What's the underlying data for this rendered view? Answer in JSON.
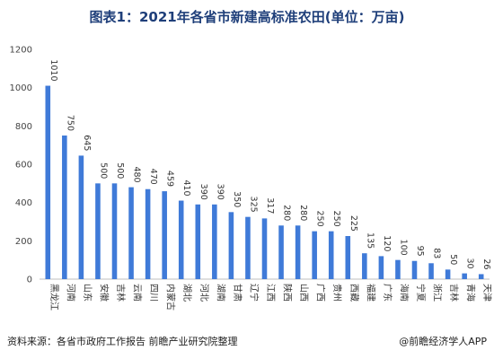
{
  "chart_data": {
    "type": "bar",
    "title": "图表1：2021年各省市新建高标准农田(单位：万亩)",
    "categories": [
      "黑龙江",
      "河南",
      "山东",
      "安徽",
      "吉林",
      "云南",
      "四川",
      "内蒙古",
      "湖北",
      "河北",
      "湖南",
      "甘肃",
      "辽宁",
      "江西",
      "陕西",
      "山西",
      "广西",
      "贵州",
      "西藏",
      "福建",
      "广东",
      "海南",
      "宁夏",
      "浙江",
      "吉林",
      "青海",
      "天津"
    ],
    "values": [
      1010,
      750,
      645,
      500,
      500,
      480,
      470,
      459,
      410,
      390,
      390,
      350,
      325,
      317,
      280,
      280,
      250,
      250,
      225,
      135,
      120,
      100,
      95,
      83,
      50,
      30,
      26
    ],
    "ylim": [
      0,
      1200
    ],
    "yticks": [
      0,
      200,
      400,
      600,
      800,
      1000,
      1200
    ],
    "bar_color": "#3f7ad8",
    "grid": false,
    "xlabel": "",
    "ylabel": ""
  },
  "footer": {
    "source": "资料来源：各省市政府工作报告 前瞻产业研究院整理",
    "brand": "@前瞻经济学人APP"
  }
}
